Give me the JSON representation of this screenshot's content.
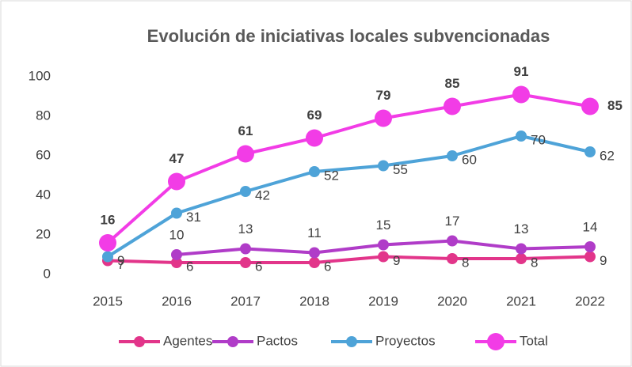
{
  "chart_data": {
    "type": "line",
    "title": "Evolución de iniciativas locales subvencionadas",
    "categories": [
      "2015",
      "2016",
      "2017",
      "2018",
      "2019",
      "2020",
      "2021",
      "2022"
    ],
    "series": [
      {
        "name": "Agentes",
        "color": "#e2358a",
        "values": [
          7,
          6,
          6,
          6,
          9,
          8,
          8,
          9
        ]
      },
      {
        "name": "Pactos",
        "color": "#b03cc8",
        "values": [
          null,
          10,
          13,
          11,
          15,
          17,
          13,
          14
        ]
      },
      {
        "name": "Proyectos",
        "color": "#4ea3d8",
        "values": [
          9,
          31,
          42,
          52,
          55,
          60,
          70,
          62
        ]
      },
      {
        "name": "Total",
        "color": "#f23ce6",
        "values": [
          16,
          47,
          61,
          69,
          79,
          85,
          91,
          85
        ]
      }
    ],
    "ylim": [
      0,
      100
    ],
    "yticks": [
      0,
      20,
      40,
      60,
      80,
      100
    ],
    "grid": false,
    "legend": "bottom"
  }
}
